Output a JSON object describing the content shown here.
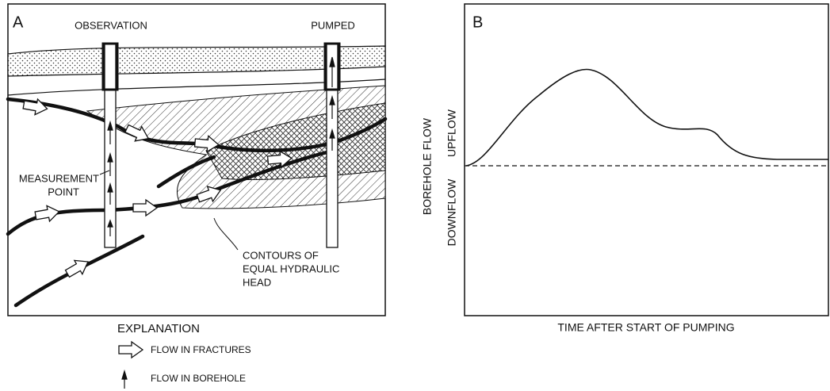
{
  "panel_a": {
    "label": "A",
    "observation_label": "OBSERVATION",
    "pumped_label": "PUMPED",
    "measurement_lines": [
      "MEASUREMENT",
      "POINT"
    ],
    "contours_lines": [
      "CONTOURS OF",
      "EQUAL HYDRAULIC",
      "HEAD"
    ]
  },
  "explanation": {
    "title": "EXPLANATION",
    "items": [
      "FLOW IN FRACTURES",
      "FLOW IN BOREHOLE"
    ]
  },
  "panel_b": {
    "label": "B",
    "y_label": "BOREHOLE FLOW",
    "upflow": "UPFLOW",
    "downflow": "DOWNFLOW",
    "x_label": "TIME AFTER START OF PUMPING"
  }
}
